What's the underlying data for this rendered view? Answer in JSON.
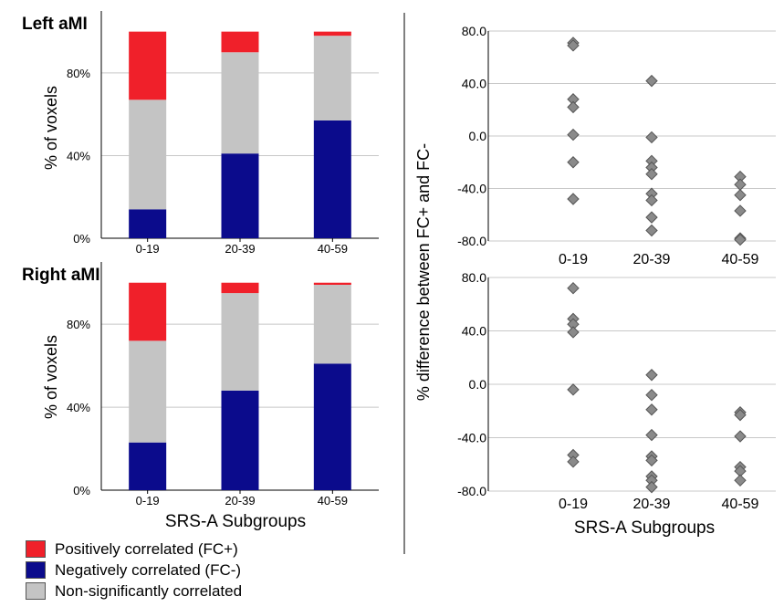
{
  "chart_data": [
    {
      "type": "stacked-bar",
      "title": "Left aMI",
      "categories": [
        "0-19",
        "20-39",
        "40-59"
      ],
      "series": [
        {
          "name": "Negatively correlated (FC-)",
          "color": "#0b0b8c",
          "values": [
            14,
            41,
            57
          ]
        },
        {
          "name": "Non-significantly correlated",
          "color": "#c4c4c4",
          "values": [
            53,
            49,
            41
          ]
        },
        {
          "name": "Positively correlated (FC+)",
          "color": "#f0202a",
          "values": [
            33,
            10,
            2
          ]
        }
      ],
      "ylabel": "% of voxels",
      "yticks": [
        "0%",
        "40%",
        "80%"
      ],
      "ylim": [
        0,
        110
      ]
    },
    {
      "type": "stacked-bar",
      "title": "Right aMI",
      "categories": [
        "0-19",
        "20-39",
        "40-59"
      ],
      "series": [
        {
          "name": "Negatively correlated (FC-)",
          "color": "#0b0b8c",
          "values": [
            23,
            48,
            61
          ]
        },
        {
          "name": "Non-significantly correlated",
          "color": "#c4c4c4",
          "values": [
            49,
            47,
            38
          ]
        },
        {
          "name": "Positively correlated (FC+)",
          "color": "#f0202a",
          "values": [
            28,
            5,
            1
          ]
        }
      ],
      "ylabel": "% of voxels",
      "yticks": [
        "0%",
        "40%",
        "80%"
      ],
      "ylim": [
        0,
        110
      ]
    },
    {
      "type": "scatter",
      "categories": [
        "0-19",
        "20-39",
        "40-59"
      ],
      "points": [
        [
          0,
          71
        ],
        [
          0,
          69
        ],
        [
          0,
          28
        ],
        [
          0,
          22
        ],
        [
          0,
          1
        ],
        [
          0,
          -20
        ],
        [
          0,
          -48
        ],
        [
          1,
          42
        ],
        [
          1,
          -1
        ],
        [
          1,
          -19
        ],
        [
          1,
          -24
        ],
        [
          1,
          -29
        ],
        [
          1,
          -44
        ],
        [
          1,
          -49
        ],
        [
          1,
          -62
        ],
        [
          1,
          -72
        ],
        [
          2,
          -31
        ],
        [
          2,
          -37
        ],
        [
          2,
          -45
        ],
        [
          2,
          -57
        ],
        [
          2,
          -78
        ],
        [
          2,
          -79
        ]
      ],
      "ylabel": "% difference between FC+ and FC-",
      "yticks": [
        "80.0",
        "40.0",
        "0.0",
        "-40.0",
        "-80.0"
      ],
      "ylim": [
        -80,
        80
      ],
      "marker_color": "#8a8a8a"
    },
    {
      "type": "scatter",
      "categories": [
        "0-19",
        "20-39",
        "40-59"
      ],
      "points": [
        [
          0,
          72
        ],
        [
          0,
          49
        ],
        [
          0,
          45
        ],
        [
          0,
          39
        ],
        [
          0,
          -4
        ],
        [
          0,
          -53
        ],
        [
          0,
          -58
        ],
        [
          1,
          7
        ],
        [
          1,
          -8
        ],
        [
          1,
          -19
        ],
        [
          1,
          -38
        ],
        [
          1,
          -54
        ],
        [
          1,
          -57
        ],
        [
          1,
          -69
        ],
        [
          1,
          -72
        ],
        [
          1,
          -77
        ],
        [
          2,
          -21
        ],
        [
          2,
          -23
        ],
        [
          2,
          -39
        ],
        [
          2,
          -62
        ],
        [
          2,
          -65
        ],
        [
          2,
          -72
        ]
      ],
      "ylabel": "% difference between FC+ and FC-",
      "yticks": [
        "80.0",
        "40.0",
        "0.0",
        "-40.0",
        "-80.0"
      ],
      "ylim": [
        -80,
        80
      ],
      "marker_color": "#8a8a8a"
    }
  ],
  "left_xlabel": "SRS-A Subgroups",
  "right_xlabel": "SRS-A Subgroups",
  "right_ylabel": "% difference between FC+ and FC-",
  "legend": [
    {
      "label": "Positively correlated (FC+)",
      "color": "#f0202a"
    },
    {
      "label": "Negatively correlated (FC-)",
      "color": "#0b0b8c"
    },
    {
      "label": "Non-significantly correlated",
      "color": "#c4c4c4"
    }
  ]
}
